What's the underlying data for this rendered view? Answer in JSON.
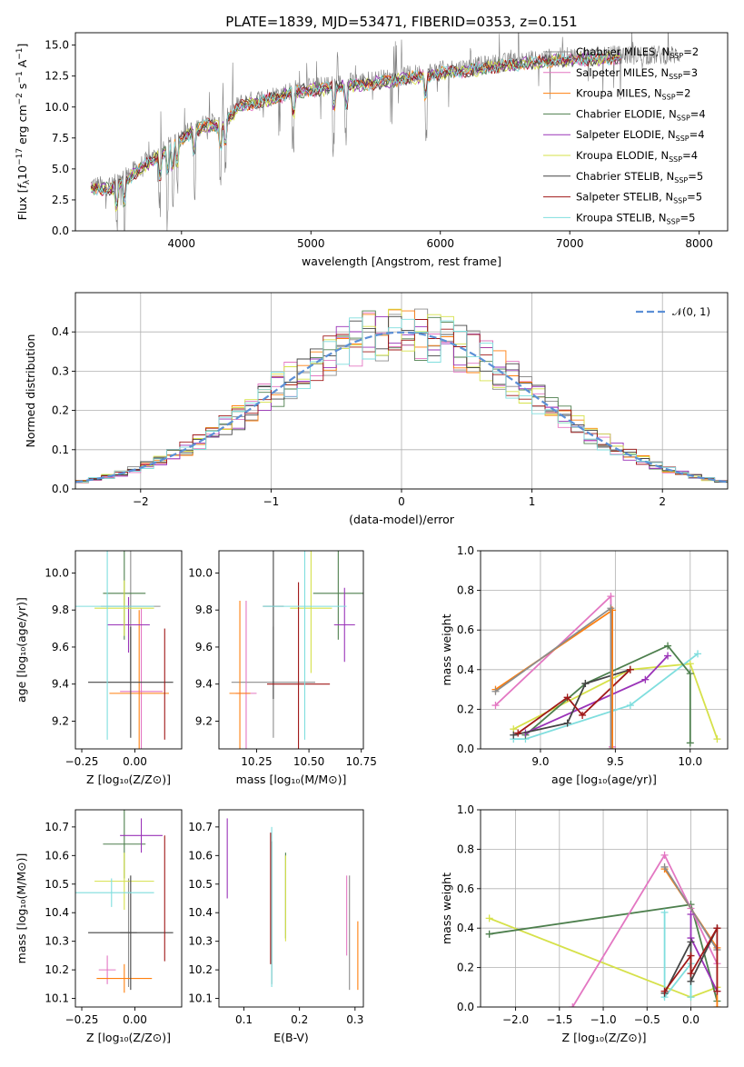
{
  "colors": {
    "Chabrier MILES": "#8c8c8c",
    "Salpeter MILES": "#e377c2",
    "Kroupa MILES": "#ff7f0e",
    "Chabrier ELODIE": "#4d7f4d",
    "Salpeter ELODIE": "#9a33b8",
    "Kroupa ELODIE": "#d6e14a",
    "Chabrier STELIB": "#444444",
    "Salpeter STELIB": "#a01818",
    "Kroupa STELIB": "#7fdede",
    "normal": "#5b8fd6"
  },
  "chart_data": [
    {
      "id": "spectrum",
      "type": "line",
      "title": "PLATE=1839, MJD=53471, FIBERID=0353, z=0.151",
      "xlabel": "wavelength [Angstrom, rest frame]",
      "ylabel_pre": "Flux [",
      "ylabel_sub": "λ",
      "ylabel_mid": "10",
      "ylabel_sup1": "−17",
      "ylabel_post": " erg cm",
      "ylabel_sup2": "−2",
      "ylabel_s": " s",
      "ylabel_sup3": "−1",
      "ylabel_a": " A",
      "ylabel_sup4": "−1",
      "ylabel_end": "]",
      "ylabel_f": "f",
      "xlim": [
        3180,
        8220
      ],
      "ylim": [
        0,
        16
      ],
      "xticks": [
        4000,
        5000,
        6000,
        7000,
        8000
      ],
      "yticks": [
        0.0,
        2.5,
        5.0,
        7.5,
        10.0,
        12.5,
        15.0
      ],
      "ytick_labels": [
        "0.0",
        "2.5",
        "5.0",
        "7.5",
        "10.0",
        "12.5",
        "15.0"
      ],
      "grid": false,
      "legend_position": "upper-right",
      "continuum": [
        [
          3300,
          3.7
        ],
        [
          3450,
          3.6
        ],
        [
          3550,
          4.2
        ],
        [
          3700,
          5.4
        ],
        [
          3850,
          6.4
        ],
        [
          3950,
          7.2
        ],
        [
          4050,
          8.0
        ],
        [
          4200,
          8.8
        ],
        [
          4300,
          8.6
        ],
        [
          4450,
          10.3
        ],
        [
          4700,
          10.9
        ],
        [
          4900,
          11.5
        ],
        [
          5100,
          11.7
        ],
        [
          5300,
          12.0
        ],
        [
          5500,
          12.2
        ],
        [
          5700,
          12.5
        ],
        [
          5900,
          12.8
        ],
        [
          6100,
          13.1
        ],
        [
          6300,
          13.3
        ],
        [
          6500,
          13.6
        ],
        [
          6700,
          13.8
        ],
        [
          6900,
          14.0
        ],
        [
          7100,
          14.1
        ],
        [
          7400,
          14.2
        ]
      ],
      "data_extent": [
        3300,
        7850
      ],
      "model_extent": [
        3300,
        7400
      ],
      "series": [
        {
          "label": "Chabrier MILES",
          "sub": "N",
          "subscript": "SSP",
          "n": "2"
        },
        {
          "label": "Salpeter MILES",
          "sub": "N",
          "subscript": "SSP",
          "n": "3"
        },
        {
          "label": "Kroupa MILES",
          "sub": "N",
          "subscript": "SSP",
          "n": "2"
        },
        {
          "label": "Chabrier ELODIE",
          "sub": "N",
          "subscript": "SSP",
          "n": "4"
        },
        {
          "label": "Salpeter ELODIE",
          "sub": "N",
          "subscript": "SSP",
          "n": "4"
        },
        {
          "label": "Kroupa ELODIE",
          "sub": "N",
          "subscript": "SSP",
          "n": "4"
        },
        {
          "label": "Chabrier STELIB",
          "sub": "N",
          "subscript": "SSP",
          "n": "5"
        },
        {
          "label": "Salpeter STELIB",
          "sub": "N",
          "subscript": "SSP",
          "n": "5"
        },
        {
          "label": "Kroupa STELIB",
          "sub": "N",
          "subscript": "SSP",
          "n": "5"
        }
      ]
    },
    {
      "id": "residuals",
      "type": "histogram",
      "xlabel": "(data-model)/error",
      "ylabel": "Normed distribution",
      "xlim": [
        -2.5,
        2.5
      ],
      "ylim": [
        0,
        0.5
      ],
      "xticks": [
        -2,
        -1,
        0,
        1,
        2
      ],
      "xtick_labels": [
        "−2",
        "−1",
        "0",
        "1",
        "2"
      ],
      "yticks": [
        0.0,
        0.1,
        0.2,
        0.3,
        0.4
      ],
      "ytick_labels": [
        "0.0",
        "0.1",
        "0.2",
        "0.3",
        "0.4"
      ],
      "grid": true,
      "bin_width": 0.1,
      "legend_label": "𝒩(0, 1)",
      "legend_position": "upper-right",
      "normal_curve": {
        "mean": 0,
        "sigma": 1
      }
    },
    {
      "id": "z-age",
      "type": "errorbar",
      "xlabel": "Z [log₁₀(Z/Z⊙)]",
      "ylabel": "age  [log₁₀(age/yr)]",
      "xlim": [
        -0.28,
        0.22
      ],
      "ylim": [
        9.05,
        10.12
      ],
      "xticks": [
        -0.25,
        0.0
      ],
      "xtick_labels": [
        "−0.25",
        "0.00"
      ],
      "yticks": [
        9.2,
        9.4,
        9.6,
        9.8,
        10.0
      ],
      "ytick_labels": [
        "9.2",
        "9.4",
        "9.6",
        "9.8",
        "10.0"
      ],
      "points": [
        {
          "model": "Chabrier MILES",
          "x": -0.02,
          "xerr": 0.14,
          "y": 9.82,
          "yerr": 0.4
        },
        {
          "model": "Salpeter MILES",
          "x": 0.03,
          "xerr": 0.1,
          "y": 9.36,
          "yerr": 0.45
        },
        {
          "model": "Kroupa MILES",
          "x": 0.02,
          "xerr": 0.14,
          "y": 9.35,
          "yerr": 0.45
        },
        {
          "model": "Chabrier ELODIE",
          "x": -0.05,
          "xerr": 0.1,
          "y": 9.89,
          "yerr": 0.25
        },
        {
          "model": "Salpeter ELODIE",
          "x": -0.03,
          "xerr": 0.1,
          "y": 9.72,
          "yerr": 0.15
        },
        {
          "model": "Kroupa ELODIE",
          "x": -0.05,
          "xerr": 0.14,
          "y": 9.81,
          "yerr": 0.15
        },
        {
          "model": "Chabrier STELIB",
          "x": -0.02,
          "xerr": 0.2,
          "y": 9.41,
          "yerr": 0.3
        },
        {
          "model": "Salpeter STELIB",
          "x": 0.14,
          "xerr": 0.0,
          "y": 9.4,
          "yerr": 0.3
        },
        {
          "model": "Kroupa STELIB",
          "x": -0.13,
          "xerr": 0.22,
          "y": 9.82,
          "yerr": 0.72
        }
      ]
    },
    {
      "id": "mass-age",
      "type": "errorbar",
      "xlabel": "mass [log₁₀(M/M⊙)]",
      "ylabel": "",
      "xlim": [
        10.07,
        10.76
      ],
      "ylim": [
        9.05,
        10.12
      ],
      "xticks": [
        10.25,
        10.5,
        10.75
      ],
      "xtick_labels": [
        "10.25",
        "10.50",
        "10.75"
      ],
      "yticks": [
        9.2,
        9.4,
        9.6,
        9.8,
        10.0
      ],
      "ytick_labels": [
        "9.2",
        "9.4",
        "9.6",
        "9.8",
        "10.0"
      ],
      "points": [
        {
          "model": "Chabrier MILES",
          "x": 10.33,
          "xerr": 0.2,
          "y": 9.41,
          "yerr": 0.3
        },
        {
          "model": "Salpeter MILES",
          "x": 10.2,
          "xerr": 0.05,
          "y": 9.35,
          "yerr": 0.5
        },
        {
          "model": "Kroupa MILES",
          "x": 10.17,
          "xerr": 0.05,
          "y": 9.35,
          "yerr": 0.5
        },
        {
          "model": "Chabrier ELODIE",
          "x": 10.64,
          "xerr": 0.12,
          "y": 9.89,
          "yerr": 0.25
        },
        {
          "model": "Salpeter ELODIE",
          "x": 10.67,
          "xerr": 0.05,
          "y": 9.72,
          "yerr": 0.2
        },
        {
          "model": "Kroupa ELODIE",
          "x": 10.51,
          "xerr": 0.1,
          "y": 9.81,
          "yerr": 0.35
        },
        {
          "model": "Chabrier STELIB",
          "x": 10.33,
          "xerr": 0.05,
          "y": 9.82,
          "yerr": 0.5
        },
        {
          "model": "Salpeter STELIB",
          "x": 10.45,
          "xerr": 0.15,
          "y": 9.4,
          "yerr": 0.55
        },
        {
          "model": "Kroupa STELIB",
          "x": 10.48,
          "xerr": 0.2,
          "y": 9.82,
          "yerr": 0.72
        }
      ]
    },
    {
      "id": "age-weight",
      "type": "line",
      "xlabel": "age  [log₁₀(age/yr)]",
      "ylabel": "mass weight",
      "xlim": [
        8.6,
        10.25
      ],
      "ylim": [
        0,
        1
      ],
      "xticks": [
        9.0,
        9.5,
        10.0
      ],
      "xtick_labels": [
        "9.0",
        "9.5",
        "10.0"
      ],
      "yticks": [
        0.0,
        0.2,
        0.4,
        0.6,
        0.8,
        1.0
      ],
      "ytick_labels": [
        "0.0",
        "0.2",
        "0.4",
        "0.6",
        "0.8",
        "1.0"
      ],
      "grid": true,
      "series": [
        {
          "model": "Kroupa ELODIE",
          "x": [
            8.82,
            9.6,
            10.0,
            10.18
          ],
          "y": [
            0.1,
            0.4,
            0.43,
            0.05
          ]
        },
        {
          "model": "Kroupa STELIB",
          "x": [
            8.82,
            8.9,
            9.6,
            10.05
          ],
          "y": [
            0.05,
            0.05,
            0.22,
            0.48
          ]
        },
        {
          "model": "Chabrier ELODIE",
          "x": [
            8.9,
            9.3,
            9.85,
            10.0,
            10.0
          ],
          "y": [
            0.07,
            0.33,
            0.52,
            0.38,
            0.03
          ]
        },
        {
          "model": "Salpeter ELODIE",
          "x": [
            8.9,
            9.7,
            9.85
          ],
          "y": [
            0.08,
            0.35,
            0.47
          ]
        },
        {
          "model": "Chabrier STELIB",
          "x": [
            8.82,
            9.18,
            9.3,
            9.6
          ],
          "y": [
            0.07,
            0.13,
            0.33,
            0.4
          ]
        },
        {
          "model": "Salpeter STELIB",
          "x": [
            8.85,
            9.18,
            9.28,
            9.6
          ],
          "y": [
            0.08,
            0.26,
            0.17,
            0.4
          ]
        },
        {
          "model": "Salpeter MILES",
          "x": [
            8.7,
            9.47,
            9.48
          ],
          "y": [
            0.22,
            0.77,
            0.01
          ]
        },
        {
          "model": "Kroupa MILES",
          "x": [
            8.7,
            9.48,
            9.48
          ],
          "y": [
            0.3,
            0.7,
            0.0
          ]
        },
        {
          "model": "Chabrier MILES",
          "x": [
            8.7,
            9.47,
            9.47
          ],
          "y": [
            0.29,
            0.71,
            0.0
          ]
        }
      ]
    },
    {
      "id": "z-mass",
      "type": "errorbar",
      "xlabel": "Z [log₁₀(Z/Z⊙)]",
      "ylabel": "mass [log₁₀(M/M⊙)]",
      "xlim": [
        -0.28,
        0.22
      ],
      "ylim": [
        10.07,
        10.76
      ],
      "xticks": [
        -0.25,
        0.0
      ],
      "xtick_labels": [
        "−0.25",
        "0.00"
      ],
      "yticks": [
        10.1,
        10.2,
        10.3,
        10.4,
        10.5,
        10.6,
        10.7
      ],
      "ytick_labels": [
        "10.1",
        "10.2",
        "10.3",
        "10.4",
        "10.5",
        "10.6",
        "10.7"
      ],
      "points": [
        {
          "model": "Chabrier MILES",
          "x": -0.03,
          "xerr": 0.04,
          "y": 10.33,
          "yerr": 0.19
        },
        {
          "model": "Salpeter MILES",
          "x": -0.13,
          "xerr": 0.04,
          "y": 10.2,
          "yerr": 0.05
        },
        {
          "model": "Kroupa MILES",
          "x": -0.05,
          "xerr": 0.13,
          "y": 10.17,
          "yerr": 0.05
        },
        {
          "model": "Chabrier ELODIE",
          "x": -0.05,
          "xerr": 0.1,
          "y": 10.64,
          "yerr": 0.12
        },
        {
          "model": "Salpeter ELODIE",
          "x": 0.03,
          "xerr": 0.1,
          "y": 10.67,
          "yerr": 0.06
        },
        {
          "model": "Kroupa ELODIE",
          "x": -0.05,
          "xerr": 0.14,
          "y": 10.51,
          "yerr": 0.1
        },
        {
          "model": "Chabrier STELIB",
          "x": -0.02,
          "xerr": 0.2,
          "y": 10.33,
          "yerr": 0.2
        },
        {
          "model": "Salpeter STELIB",
          "x": 0.14,
          "xerr": 0.0,
          "y": 10.45,
          "yerr": 0.22
        },
        {
          "model": "Kroupa STELIB",
          "x": -0.11,
          "xerr": 0.2,
          "y": 10.47,
          "yerr": 0.05
        }
      ]
    },
    {
      "id": "ebv-mass",
      "type": "errorbar",
      "xlabel": "E(B-V)",
      "ylabel": "",
      "xlim": [
        0.055,
        0.315
      ],
      "ylim": [
        10.07,
        10.76
      ],
      "xticks": [
        0.1,
        0.2,
        0.3
      ],
      "xtick_labels": [
        "0.1",
        "0.2",
        "0.3"
      ],
      "yticks": [
        10.1,
        10.2,
        10.3,
        10.4,
        10.5,
        10.6,
        10.7
      ],
      "ytick_labels": [
        "10.1",
        "10.2",
        "10.3",
        "10.4",
        "10.5",
        "10.6",
        "10.7"
      ],
      "points": [
        {
          "model": "Chabrier MILES",
          "x": 0.29,
          "xerr": 0.0,
          "y": 10.33,
          "yerr": 0.2
        },
        {
          "model": "Salpeter MILES",
          "x": 0.285,
          "xerr": 0.0,
          "y": 10.39,
          "yerr": 0.14
        },
        {
          "model": "Kroupa MILES",
          "x": 0.305,
          "xerr": 0.0,
          "y": 10.25,
          "yerr": 0.12
        },
        {
          "model": "Chabrier ELODIE",
          "x": 0.175,
          "xerr": 0.0,
          "y": 10.46,
          "yerr": 0.15
        },
        {
          "model": "Salpeter ELODIE",
          "x": 0.07,
          "xerr": 0.0,
          "y": 10.59,
          "yerr": 0.14
        },
        {
          "model": "Kroupa ELODIE",
          "x": 0.175,
          "xerr": 0.0,
          "y": 10.45,
          "yerr": 0.15
        },
        {
          "model": "Chabrier STELIB",
          "x": 0.15,
          "xerr": 0.0,
          "y": 10.4,
          "yerr": 0.25
        },
        {
          "model": "Salpeter STELIB",
          "x": 0.148,
          "xerr": 0.0,
          "y": 10.45,
          "yerr": 0.23
        },
        {
          "model": "Kroupa STELIB",
          "x": 0.15,
          "xerr": 0.0,
          "y": 10.42,
          "yerr": 0.28
        }
      ]
    },
    {
      "id": "z-weight",
      "type": "line",
      "xlabel": "Z [log₁₀(Z/Z⊙)]",
      "ylabel": "mass weight",
      "xlim": [
        -2.4,
        0.42
      ],
      "ylim": [
        0,
        1
      ],
      "xticks": [
        -2.0,
        -1.5,
        -1.0,
        -0.5,
        0.0
      ],
      "xtick_labels": [
        "−2.0",
        "−1.5",
        "−1.0",
        "−0.5",
        "0.0"
      ],
      "yticks": [
        0.0,
        0.2,
        0.4,
        0.6,
        0.8,
        1.0
      ],
      "ytick_labels": [
        "0.0",
        "0.2",
        "0.4",
        "0.6",
        "0.8",
        "1.0"
      ],
      "grid": true,
      "series": [
        {
          "model": "Kroupa ELODIE",
          "x": [
            -2.3,
            0.0,
            0.3
          ],
          "y": [
            0.45,
            0.05,
            0.1
          ]
        },
        {
          "model": "Chabrier ELODIE",
          "x": [
            -2.3,
            0.0,
            0.3
          ],
          "y": [
            0.37,
            0.52,
            0.03
          ]
        },
        {
          "model": "Kroupa STELIB",
          "x": [
            -0.3,
            -0.3,
            0.0,
            0.0
          ],
          "y": [
            0.48,
            0.05,
            0.22,
            0.05
          ]
        },
        {
          "model": "Salpeter MILES",
          "x": [
            -1.35,
            -0.3,
            0.0,
            0.3
          ],
          "y": [
            0.0,
            0.77,
            0.5,
            0.22
          ]
        },
        {
          "model": "Kroupa MILES",
          "x": [
            -0.3,
            0.3,
            0.3
          ],
          "y": [
            0.7,
            0.3,
            0.0
          ]
        },
        {
          "model": "Chabrier MILES",
          "x": [
            -0.3,
            0.3
          ],
          "y": [
            0.71,
            0.29
          ]
        },
        {
          "model": "Salpeter ELODIE",
          "x": [
            0.0,
            0.0,
            0.3
          ],
          "y": [
            0.47,
            0.35,
            0.08
          ]
        },
        {
          "model": "Chabrier STELIB",
          "x": [
            -0.3,
            0.0,
            0.0,
            0.3
          ],
          "y": [
            0.07,
            0.33,
            0.13,
            0.4
          ]
        },
        {
          "model": "Salpeter STELIB",
          "x": [
            -0.3,
            0.0,
            0.0,
            0.3,
            0.3
          ],
          "y": [
            0.08,
            0.26,
            0.17,
            0.4,
            0.08
          ]
        }
      ]
    }
  ]
}
